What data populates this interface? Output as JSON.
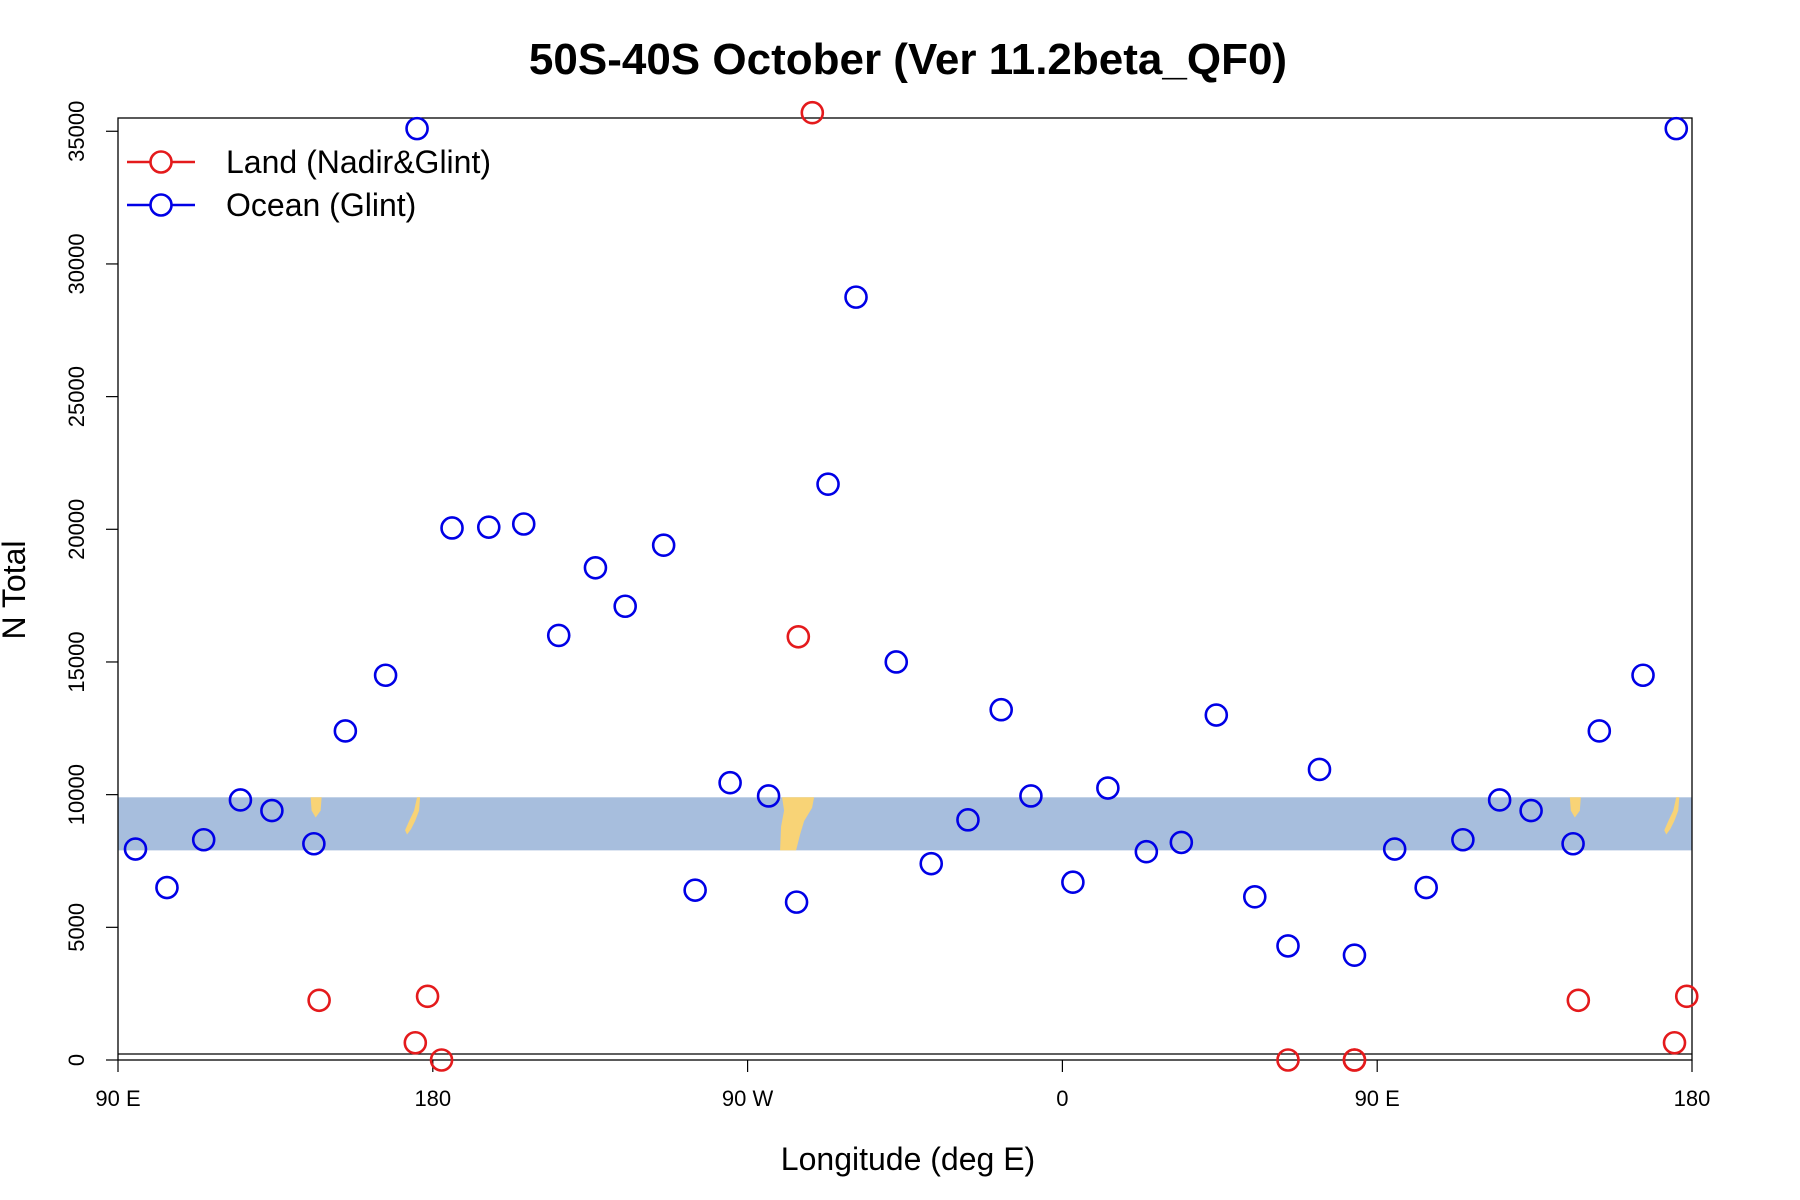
{
  "chart_data": {
    "type": "scatter",
    "title": "50S-40S October (Ver 11.2beta_QF0)",
    "xlabel": "Longitude (deg E)",
    "ylabel": "N Total",
    "xlim": [
      90,
      540
    ],
    "ylim": [
      0,
      35500
    ],
    "x_ticks": [
      {
        "value": 90,
        "label": "90 E"
      },
      {
        "value": 180,
        "label": "180"
      },
      {
        "value": 270,
        "label": "90 W"
      },
      {
        "value": 360,
        "label": "0"
      },
      {
        "value": 450,
        "label": "90 E"
      },
      {
        "value": 540,
        "label": "180"
      }
    ],
    "y_ticks": [
      {
        "value": 0,
        "label": "0"
      },
      {
        "value": 5000,
        "label": "5000"
      },
      {
        "value": 10000,
        "label": "10000"
      },
      {
        "value": 15000,
        "label": "15000"
      },
      {
        "value": 20000,
        "label": "20000"
      },
      {
        "value": 25000,
        "label": "25000"
      },
      {
        "value": 30000,
        "label": "30000"
      },
      {
        "value": 35000,
        "label": "35000"
      }
    ],
    "grid": false,
    "legend_position": "top-left",
    "map_strip": {
      "y_range": [
        7900,
        9900
      ],
      "ocean_color": "#a7bedd",
      "land_color": "#f8d376"
    },
    "series": [
      {
        "name": "Land (Nadir&Glint)",
        "color": "#e41a1c",
        "points": [
          [
            147.5,
            2250
          ],
          [
            178.5,
            2400
          ],
          [
            175,
            650
          ],
          [
            182.5,
            0
          ],
          [
            284.5,
            15950
          ],
          [
            288.5,
            35700
          ],
          [
            424.5,
            0
          ],
          [
            443.5,
            0
          ],
          [
            443.5,
            0
          ],
          [
            507.5,
            2250
          ],
          [
            538.5,
            2400
          ],
          [
            535,
            650
          ]
        ]
      },
      {
        "name": "Ocean (Glint)",
        "color": "#0000e6",
        "points": [
          [
            95,
            7950
          ],
          [
            104,
            6500
          ],
          [
            114.5,
            8300
          ],
          [
            125,
            9800
          ],
          [
            134,
            9400
          ],
          [
            146,
            8150
          ],
          [
            155,
            12400
          ],
          [
            166.5,
            14500
          ],
          [
            175.5,
            35100
          ],
          [
            185.5,
            20050
          ],
          [
            196,
            20080
          ],
          [
            206,
            20200
          ],
          [
            216,
            16000
          ],
          [
            226.5,
            18550
          ],
          [
            235,
            17100
          ],
          [
            246,
            19400
          ],
          [
            255,
            6400
          ],
          [
            265,
            10450
          ],
          [
            276,
            9950
          ],
          [
            284,
            5950
          ],
          [
            293,
            21700
          ],
          [
            301,
            28750
          ],
          [
            312.5,
            15000
          ],
          [
            322.5,
            7400
          ],
          [
            333,
            9050
          ],
          [
            342.5,
            13200
          ],
          [
            351,
            9950
          ],
          [
            363,
            6700
          ],
          [
            373,
            10250
          ],
          [
            384,
            7850
          ],
          [
            394,
            8200
          ],
          [
            404,
            13000
          ],
          [
            415,
            6150
          ],
          [
            424.5,
            4300
          ],
          [
            433.5,
            10950
          ],
          [
            443.5,
            3950
          ],
          [
            455,
            7950
          ],
          [
            464,
            6500
          ],
          [
            474.5,
            8300
          ],
          [
            485,
            9800
          ],
          [
            494,
            9400
          ],
          [
            506,
            8150
          ],
          [
            513.5,
            12400
          ],
          [
            526,
            14500
          ],
          [
            535.5,
            35100
          ]
        ]
      }
    ]
  }
}
